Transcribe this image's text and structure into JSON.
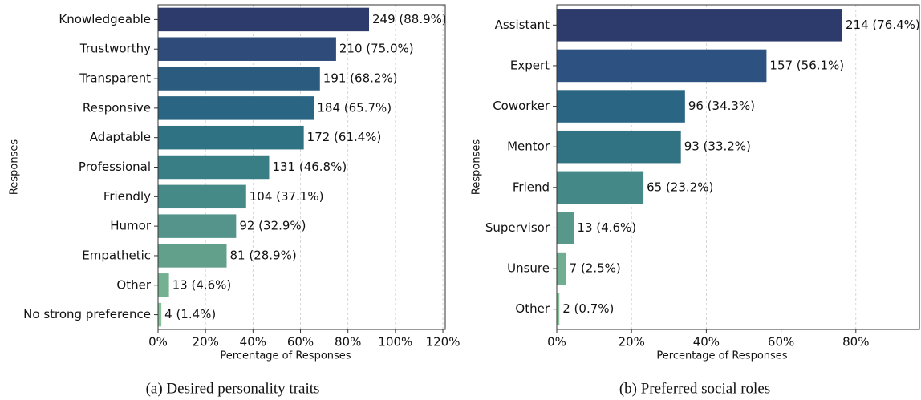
{
  "chart_data": [
    {
      "type": "barh",
      "caption": "(a) Desired personality traits",
      "categories": [
        "Knowledgeable",
        "Trustworthy",
        "Transparent",
        "Responsive",
        "Adaptable",
        "Professional",
        "Friendly",
        "Humor",
        "Empathetic",
        "Other",
        "No strong preference"
      ],
      "values": [
        88.9,
        75.0,
        68.2,
        65.7,
        61.4,
        46.8,
        37.1,
        32.9,
        28.9,
        4.6,
        1.4
      ],
      "value_labels": [
        "249 (88.9%)",
        "210 (75.0%)",
        "191 (68.2%)",
        "184 (65.7%)",
        "172 (61.4%)",
        "131 (46.8%)",
        "104 (37.1%)",
        "92 (32.9%)",
        "81 (28.9%)",
        "13 (4.6%)",
        "4 (1.4%)"
      ],
      "colors": [
        "#2c3b6b",
        "#2f4b7a",
        "#2c5b80",
        "#2a6683",
        "#2f7283",
        "#3a7e85",
        "#468a88",
        "#54948a",
        "#62a08c",
        "#74b192",
        "#86c29a"
      ],
      "xlabel": "Percentage of Responses",
      "ylabel": "Responses",
      "xlim": [
        0,
        121
      ],
      "xticks": [
        {
          "value": 0,
          "label": "0%"
        },
        {
          "value": 20,
          "label": "20%"
        },
        {
          "value": 40,
          "label": "40%"
        },
        {
          "value": 60,
          "label": "60%"
        },
        {
          "value": 80,
          "label": "80%"
        },
        {
          "value": 100,
          "label": "100%"
        },
        {
          "value": 120,
          "label": "120%"
        }
      ],
      "grid": true
    },
    {
      "type": "barh",
      "caption": "(b) Preferred social roles",
      "categories": [
        "Assistant",
        "Expert",
        "Coworker",
        "Mentor",
        "Friend",
        "Supervisor",
        "Unsure",
        "Other"
      ],
      "values": [
        76.4,
        56.1,
        34.3,
        33.2,
        23.2,
        4.6,
        2.5,
        0.7
      ],
      "value_labels": [
        "214 (76.4%)",
        "157 (56.1%)",
        "96 (34.3%)",
        "93 (33.2%)",
        "65 (23.2%)",
        "13 (4.6%)",
        "7 (2.5%)",
        "2 (0.7%)"
      ],
      "colors": [
        "#2c3b6b",
        "#2d5180",
        "#2a6584",
        "#317283",
        "#448887",
        "#58988a",
        "#70ad91",
        "#86c29a"
      ],
      "xlabel": "Percentage of Responses",
      "ylabel": "Responses",
      "xlim": [
        0,
        97
      ],
      "xticks": [
        {
          "value": 0,
          "label": "0%"
        },
        {
          "value": 20,
          "label": "20%"
        },
        {
          "value": 40,
          "label": "40%"
        },
        {
          "value": 60,
          "label": "60%"
        },
        {
          "value": 80,
          "label": "80%"
        }
      ],
      "grid": true
    }
  ]
}
